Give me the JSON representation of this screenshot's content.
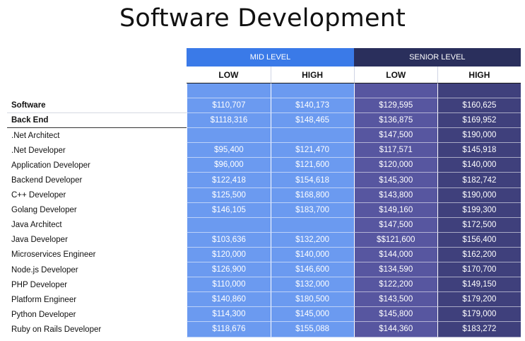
{
  "title": "Software Development",
  "headers": {
    "mid_level": "MID LEVEL",
    "senior_level": "SENIOR LEVEL",
    "mid_low": "LOW",
    "mid_high": "HIGH",
    "sen_low": "LOW",
    "sen_high": "HIGH"
  },
  "rows": [
    {
      "name": "Software",
      "mid_low": "$110,707",
      "mid_high": "$140,173",
      "sen_low": "$129,595",
      "sen_high": "$160,625"
    },
    {
      "name": "Back End",
      "mid_low": "$1118,316",
      "mid_high": "$148,465",
      "sen_low": "$136,875",
      "sen_high": "$169,952"
    },
    {
      "name": ".Net Architect",
      "mid_low": "",
      "mid_high": "",
      "sen_low": "$147,500",
      "sen_high": "$190,000"
    },
    {
      "name": ".Net Developer",
      "mid_low": "$95,400",
      "mid_high": "$121,470",
      "sen_low": "$117,571",
      "sen_high": "$145,918"
    },
    {
      "name": "Application Developer",
      "mid_low": "$96,000",
      "mid_high": "$121,600",
      "sen_low": "$120,000",
      "sen_high": "$140,000"
    },
    {
      "name": "Backend Developer",
      "mid_low": "$122,418",
      "mid_high": "$154,618",
      "sen_low": "$145,300",
      "sen_high": "$182,742"
    },
    {
      "name": "C++ Developer",
      "mid_low": "$125,500",
      "mid_high": "$168,800",
      "sen_low": "$143,800",
      "sen_high": "$190,000"
    },
    {
      "name": "Golang Developer",
      "mid_low": "$146,105",
      "mid_high": "$183,700",
      "sen_low": "$149,160",
      "sen_high": "$199,300"
    },
    {
      "name": "Java Architect",
      "mid_low": "",
      "mid_high": "",
      "sen_low": "$147,500",
      "sen_high": "$172,500"
    },
    {
      "name": "Java Developer",
      "mid_low": "$103,636",
      "mid_high": "$132,200",
      "sen_low": "$$121,600",
      "sen_high": "$156,400"
    },
    {
      "name": "Microservices Engineer",
      "mid_low": "$120,000",
      "mid_high": "$140,000",
      "sen_low": "$144,000",
      "sen_high": "$162,200"
    },
    {
      "name": "Node.js Developer",
      "mid_low": "$126,900",
      "mid_high": "$146,600",
      "sen_low": "$134,590",
      "sen_high": "$170,700"
    },
    {
      "name": "PHP Developer",
      "mid_low": "$110,000",
      "mid_high": "$132,000",
      "sen_low": "$122,200",
      "sen_high": "$149,150"
    },
    {
      "name": "Platform Engineer",
      "mid_low": "$140,860",
      "mid_high": "$180,500",
      "sen_low": "$143,500",
      "sen_high": "$179,200"
    },
    {
      "name": "Python Developer",
      "mid_low": "$114,300",
      "mid_high": "$145,000",
      "sen_low": "$145,800",
      "sen_high": "$179,000"
    },
    {
      "name": "Ruby on Rails Developer",
      "mid_low": "$118,676",
      "mid_high": "$155,088",
      "sen_low": "$144,360",
      "sen_high": "$183,272"
    }
  ],
  "colors": {
    "mid_header": "#3a7ae8",
    "senior_header": "#2a2f5c",
    "mid_cells": "#6b9af0",
    "senior_low_cells": "#5756a0",
    "senior_high_cells": "#3f407c"
  }
}
